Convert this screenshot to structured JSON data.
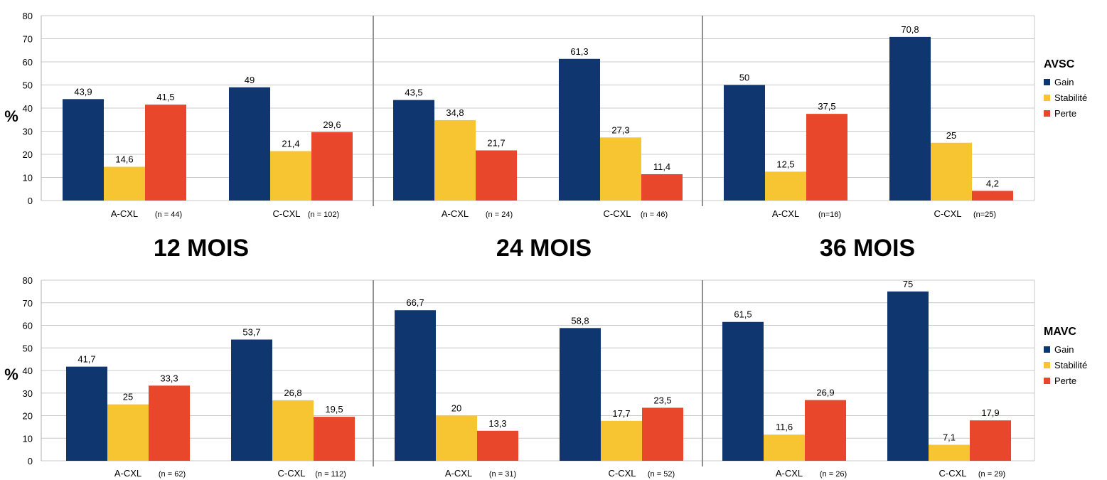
{
  "period_labels": [
    "12 MOIS",
    "24 MOIS",
    "36 MOIS"
  ],
  "colors": {
    "gain": "#103670",
    "stabilite": "#f7c531",
    "perte": "#e8472b"
  },
  "chart_data": [
    {
      "type": "bar",
      "legend_title": "AVSC",
      "ylabel": "%",
      "ylim": [
        0,
        80
      ],
      "yticks": [
        0,
        10,
        20,
        30,
        40,
        50,
        60,
        70,
        80
      ],
      "grid": true,
      "legend_placement": "right",
      "series_names": [
        "Gain",
        "Stabilité",
        "Perte"
      ],
      "groups": [
        {
          "period": "12 MOIS",
          "category": "A-CXL",
          "n": "(n = 44)",
          "values": [
            "43,9",
            "14,6",
            "41,5"
          ]
        },
        {
          "period": "12 MOIS",
          "category": "C-CXL",
          "n": "(n = 102)",
          "values": [
            "49",
            "21,4",
            "29,6"
          ]
        },
        {
          "period": "24 MOIS",
          "category": "A-CXL",
          "n": "(n = 24)",
          "values": [
            "43,5",
            "34,8",
            "21,7"
          ]
        },
        {
          "period": "24 MOIS",
          "category": "C-CXL",
          "n": "(n = 46)",
          "values": [
            "61,3",
            "27,3",
            "11,4"
          ]
        },
        {
          "period": "36 MOIS",
          "category": "A-CXL",
          "n": "(n=16)",
          "values": [
            "50",
            "12,5",
            "37,5"
          ]
        },
        {
          "period": "36 MOIS",
          "category": "C-CXL",
          "n": "(n=25)",
          "values": [
            "70,8",
            "25",
            "4,2"
          ]
        }
      ]
    },
    {
      "type": "bar",
      "legend_title": "MAVC",
      "ylabel": "%",
      "ylim": [
        0,
        80
      ],
      "yticks": [
        0,
        10,
        20,
        30,
        40,
        50,
        60,
        70,
        80
      ],
      "grid": true,
      "legend_placement": "right",
      "series_names": [
        "Gain",
        "Stabilité",
        "Perte"
      ],
      "groups": [
        {
          "period": "12 MOIS",
          "category": "A-CXL",
          "n": "(n = 62)",
          "values": [
            "41,7",
            "25",
            "33,3"
          ]
        },
        {
          "period": "12 MOIS",
          "category": "C-CXL",
          "n": "(n = 112)",
          "values": [
            "53,7",
            "26,8",
            "19,5"
          ]
        },
        {
          "period": "24 MOIS",
          "category": "A-CXL",
          "n": "(n = 31)",
          "values": [
            "66,7",
            "20",
            "13,3"
          ]
        },
        {
          "period": "24 MOIS",
          "category": "C-CXL",
          "n": "(n = 52)",
          "values": [
            "58,8",
            "17,7",
            "23,5"
          ]
        },
        {
          "period": "36 MOIS",
          "category": "A-CXL",
          "n": "(n = 26)",
          "values": [
            "61,5",
            "11,6",
            "26,9"
          ]
        },
        {
          "period": "36 MOIS",
          "category": "C-CXL",
          "n": "(n = 29)",
          "values": [
            "75",
            "7,1",
            "17,9"
          ]
        }
      ]
    }
  ]
}
